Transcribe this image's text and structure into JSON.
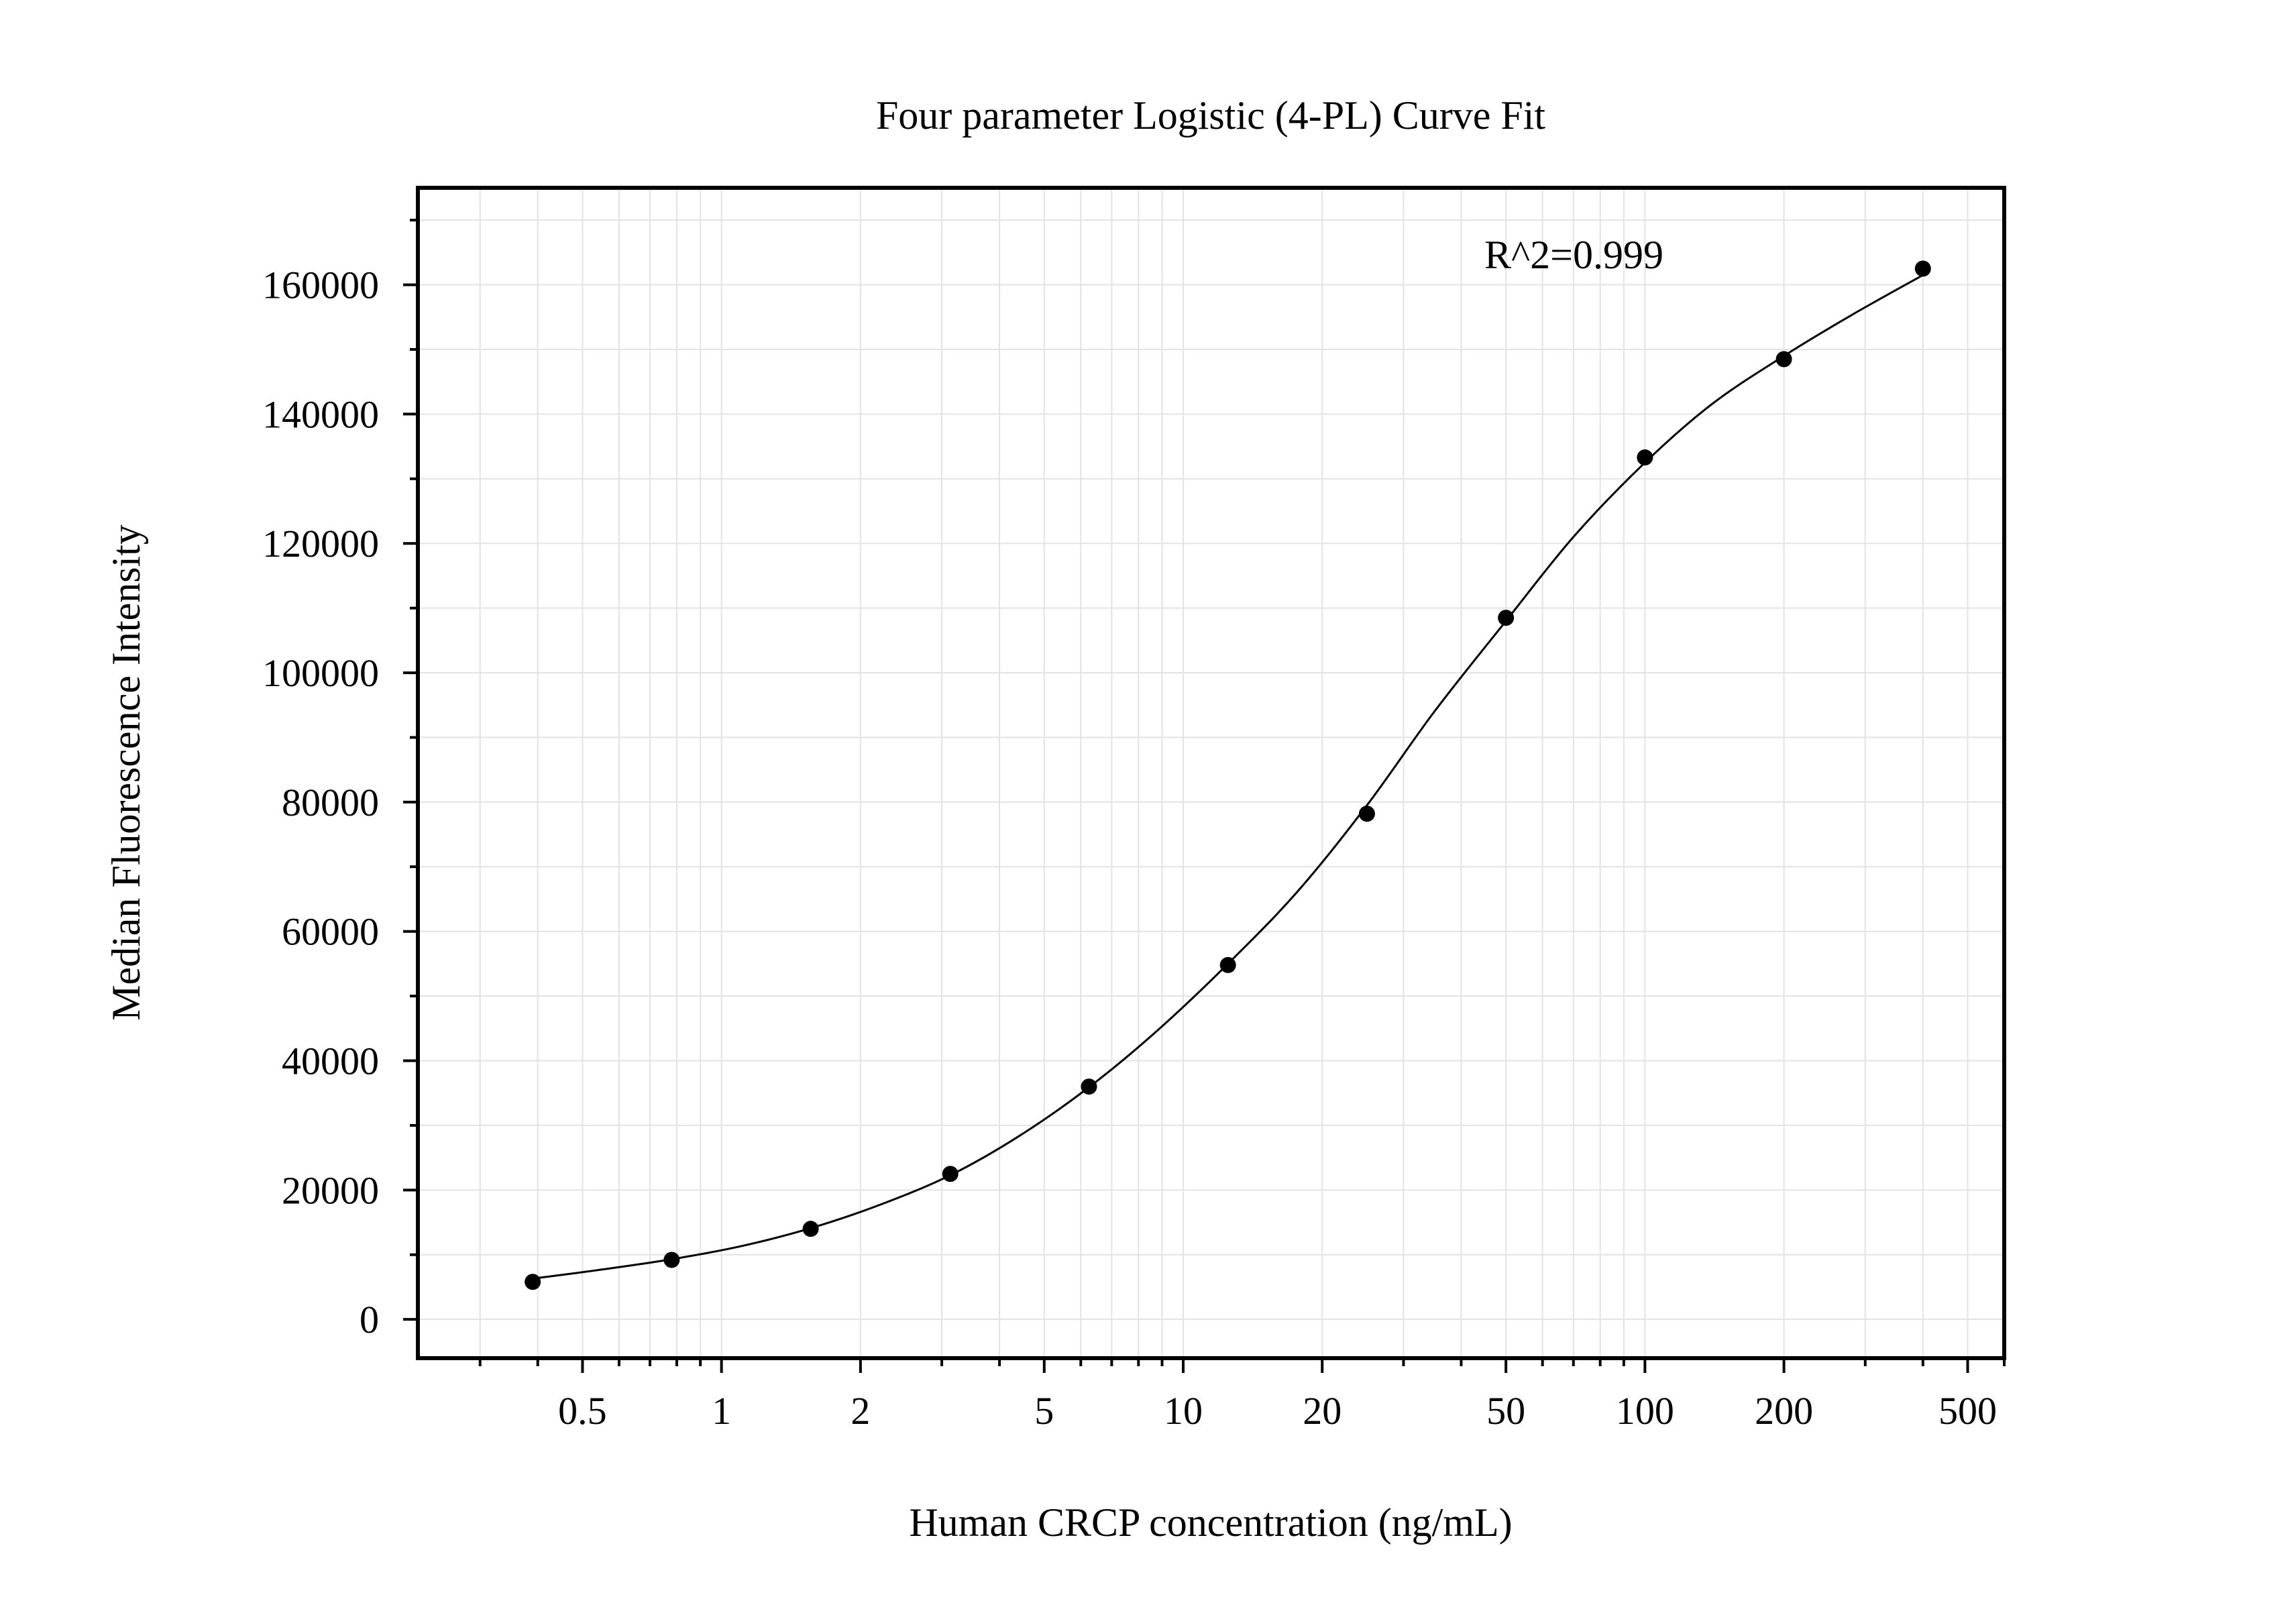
{
  "chart_data": {
    "type": "scatter",
    "title": "Four parameter Logistic (4-PL) Curve Fit",
    "xlabel": "Human CRCP concentration (ng/mL)",
    "ylabel": "Median Fluorescence Intensity",
    "x_scale": "log",
    "xlim": [
      0.22,
      600
    ],
    "ylim": [
      -6000,
      175000
    ],
    "x_ticks": [
      0.5,
      1,
      2,
      5,
      10,
      20,
      50,
      100,
      200,
      500
    ],
    "x_tick_labels": [
      "0.5",
      "1",
      "2",
      "5",
      "10",
      "20",
      "50",
      "100",
      "200",
      "500"
    ],
    "y_ticks": [
      0,
      20000,
      40000,
      60000,
      80000,
      100000,
      120000,
      140000,
      160000
    ],
    "y_tick_labels": [
      "0",
      "20000",
      "40000",
      "60000",
      "80000",
      "100000",
      "120000",
      "140000",
      "160000"
    ],
    "grid": true,
    "annotation": "R^2=0.999",
    "points": {
      "x": [
        0.39,
        0.78,
        1.56,
        3.13,
        6.25,
        12.5,
        25,
        50,
        100,
        200,
        400
      ],
      "y": [
        5800,
        9200,
        14000,
        22500,
        36000,
        54800,
        78200,
        108500,
        133300,
        148500,
        162500
      ]
    },
    "fit_curve": {
      "x": [
        0.39,
        0.55,
        0.78,
        1.1,
        1.56,
        2.2,
        3.13,
        4.4,
        6.25,
        8.8,
        12.5,
        17.7,
        25,
        35,
        50,
        70,
        100,
        140,
        200,
        280,
        400
      ],
      "y": [
        6300,
        7700,
        9300,
        11300,
        14100,
        17700,
        22300,
        28300,
        35900,
        44700,
        55000,
        66200,
        79500,
        94000,
        108000,
        121000,
        132500,
        141600,
        149000,
        155300,
        161500
      ]
    },
    "colors": {
      "points": "#000000",
      "curve": "#000000",
      "grid": "#e3e3e3",
      "frame": "#000000"
    }
  }
}
